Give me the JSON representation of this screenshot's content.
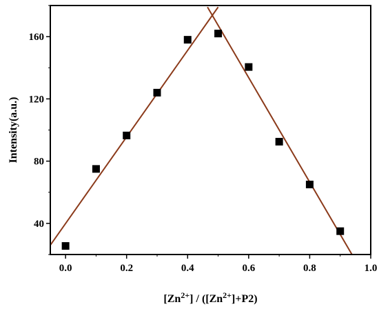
{
  "chart_data": {
    "type": "scatter",
    "ylabel": "Intensity(a.u.)",
    "xlabel_parts": {
      "p1": "[Zn",
      "sup1": "2+",
      "p2": "] / ([Zn",
      "sup2": "2+",
      "p3": "]+P2)"
    },
    "xlim": [
      -0.05,
      1.0
    ],
    "ylim": [
      20,
      180
    ],
    "x_ticks": [
      0.0,
      0.2,
      0.4,
      0.6,
      0.8,
      1.0
    ],
    "x_tick_labels": [
      "0.0",
      "0.2",
      "0.4",
      "0.6",
      "0.8",
      "1.0"
    ],
    "y_ticks": [
      40,
      80,
      120,
      160
    ],
    "y_tick_labels": [
      "40",
      "80",
      "120",
      "160"
    ],
    "grid": false,
    "series": [
      {
        "x": [
          0.0,
          0.1,
          0.2,
          0.3,
          0.4,
          0.5,
          0.6,
          0.7,
          0.8,
          0.9
        ],
        "y": [
          25.5,
          75,
          96.5,
          124,
          158,
          162,
          140.5,
          92.5,
          65,
          35
        ],
        "marker": "square",
        "color": "#000000"
      }
    ],
    "fit_lines": [
      {
        "x": [
          -0.05,
          0.5
        ],
        "y": [
          26,
          179
        ],
        "color": "#8B3A1A"
      },
      {
        "x": [
          0.465,
          0.94
        ],
        "y": [
          179,
          19.5
        ],
        "color": "#8B3A1A"
      }
    ]
  }
}
